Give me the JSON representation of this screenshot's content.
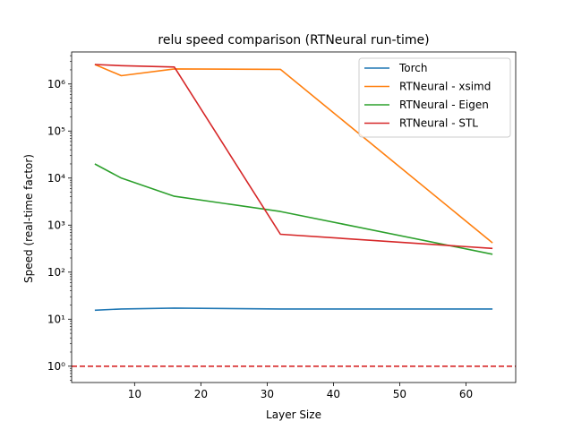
{
  "chart_data": {
    "type": "line",
    "title": "relu speed comparison (RTNeural run-time)",
    "xlabel": "Layer Size",
    "ylabel": "Speed (real-time factor)",
    "y_scale": "log",
    "xlim": [
      0.5,
      67.5
    ],
    "ylim": [
      0.45,
      4800000
    ],
    "x_ticks": [
      10,
      20,
      30,
      40,
      50,
      60
    ],
    "y_ticks": [
      1,
      10,
      100,
      1000,
      10000,
      100000,
      1000000
    ],
    "y_tick_labels": [
      "10⁰",
      "10¹",
      "10²",
      "10³",
      "10⁴",
      "10⁵",
      "10⁶"
    ],
    "grid": false,
    "legend_position": "top-right",
    "series": [
      {
        "name": "Torch",
        "color": "#1f77b4",
        "x": [
          4,
          8,
          16,
          32,
          64
        ],
        "y": [
          15.5,
          16.5,
          17.2,
          16.5,
          16.5
        ]
      },
      {
        "name": "RTNeural - xsimd",
        "color": "#ff7f0e",
        "x": [
          4,
          8,
          16,
          32,
          64
        ],
        "y": [
          2600000,
          1500000,
          2100000,
          2050000,
          420
        ]
      },
      {
        "name": "RTNeural - Eigen",
        "color": "#2ca02c",
        "x": [
          4,
          8,
          16,
          32,
          64
        ],
        "y": [
          20000,
          10000,
          4100,
          1950,
          240
        ]
      },
      {
        "name": "RTNeural - STL",
        "color": "#d62728",
        "x": [
          4,
          8,
          16,
          32,
          64
        ],
        "y": [
          2600000,
          2450000,
          2300000,
          640,
          320
        ]
      }
    ],
    "reference_line": {
      "y": 1,
      "color": "#d62728",
      "style": "dashed"
    }
  }
}
